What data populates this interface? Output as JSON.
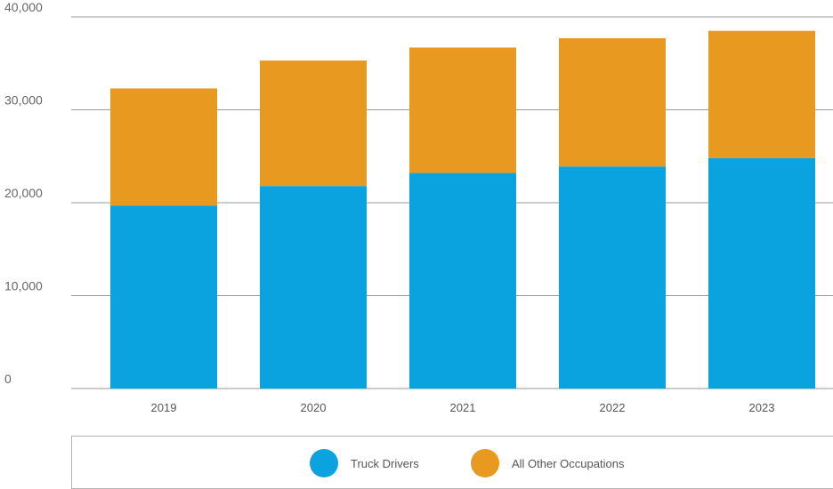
{
  "chart_data": {
    "type": "bar",
    "stacked": true,
    "categories": [
      "2019",
      "2020",
      "2021",
      "2022",
      "2023"
    ],
    "series": [
      {
        "name": "Truck Drivers",
        "color": "#0aa3e0",
        "values": [
          19700,
          21800,
          23200,
          23900,
          24800
        ]
      },
      {
        "name": "All Other Occupations",
        "color": "#e8991f",
        "values": [
          12600,
          13500,
          13500,
          13800,
          13700
        ]
      }
    ],
    "ylim": [
      0,
      40000
    ],
    "yticks": [
      {
        "value": 0,
        "label": "0"
      },
      {
        "value": 10000,
        "label": "10,000"
      },
      {
        "value": 20000,
        "label": "20,000"
      },
      {
        "value": 30000,
        "label": "30,000"
      },
      {
        "value": 40000,
        "label": "40,000"
      }
    ],
    "title": "",
    "xlabel": "",
    "ylabel": "",
    "grid": true,
    "gridline_color": "#9a9a9a",
    "legend_position": "bottom"
  }
}
